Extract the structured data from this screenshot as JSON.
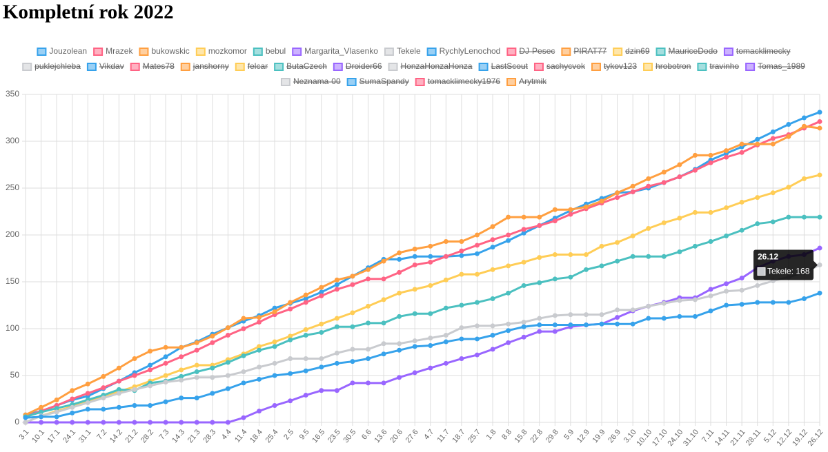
{
  "chart_data": {
    "type": "line",
    "title": "Kompletní rok 2022",
    "categories": [
      "3.1",
      "10.1",
      "17.1",
      "24.1",
      "31.1",
      "7.2",
      "14.2",
      "21.2",
      "28.2",
      "7.3",
      "14.3",
      "21.3",
      "28.3",
      "4.4",
      "11.4",
      "18.4",
      "25.4",
      "2.5",
      "9.5",
      "16.5",
      "23.5",
      "30.5",
      "6.6",
      "13.6",
      "20.6",
      "27.6",
      "4.7",
      "11.7",
      "18.7",
      "25.7",
      "1.8",
      "8.8",
      "15.8",
      "22.8",
      "29.8",
      "5.9",
      "12.9",
      "19.9",
      "26.9",
      "3.10",
      "10.10",
      "17.10",
      "24.10",
      "31.10",
      "7.11",
      "14.11",
      "21.11",
      "28.11",
      "5.12",
      "12.12",
      "19.12",
      "26.12"
    ],
    "ylim": [
      0,
      350
    ],
    "yticks": [
      0,
      50,
      100,
      150,
      200,
      250,
      300,
      350
    ],
    "grid": true,
    "series": [
      {
        "name": "Jouzolean",
        "color": "#36a2eb",
        "values": [
          8,
          12,
          18,
          24,
          28,
          36,
          44,
          53,
          61,
          70,
          80,
          86,
          94,
          101,
          108,
          114,
          122,
          127,
          132,
          139,
          147,
          156,
          165,
          174,
          174,
          177,
          177,
          177,
          178,
          180,
          187,
          194,
          202,
          210,
          218,
          226,
          233,
          239,
          245,
          246,
          250,
          256,
          262,
          270,
          280,
          287,
          294,
          302,
          310,
          318,
          325,
          331
        ]
      },
      {
        "name": "Mrazek",
        "color": "#ff6384",
        "values": [
          6,
          12,
          18,
          25,
          31,
          37,
          44,
          50,
          56,
          63,
          70,
          77,
          85,
          93,
          100,
          107,
          115,
          121,
          128,
          135,
          142,
          147,
          153,
          153,
          160,
          168,
          171,
          177,
          183,
          189,
          195,
          200,
          206,
          210,
          215,
          222,
          228,
          234,
          240,
          246,
          252,
          256,
          262,
          269,
          277,
          283,
          288,
          296,
          303,
          307,
          314,
          321
        ]
      },
      {
        "name": "bukowskic",
        "color": "#ff9f40",
        "values": [
          8,
          16,
          24,
          34,
          41,
          49,
          58,
          68,
          76,
          80,
          80,
          85,
          92,
          101,
          111,
          112,
          118,
          128,
          136,
          144,
          152,
          156,
          163,
          172,
          181,
          185,
          188,
          193,
          193,
          200,
          209,
          219,
          219,
          219,
          227,
          227,
          230,
          236,
          245,
          252,
          260,
          267,
          275,
          285,
          285,
          290,
          297,
          297,
          297,
          305,
          316,
          314
        ]
      },
      {
        "name": "mozkomor",
        "color": "#ffcd56",
        "values": [
          0,
          7,
          12,
          17,
          23,
          27,
          33,
          38,
          44,
          50,
          56,
          61,
          61,
          67,
          73,
          81,
          86,
          92,
          99,
          105,
          111,
          117,
          124,
          131,
          138,
          142,
          146,
          152,
          158,
          158,
          163,
          167,
          171,
          176,
          179,
          179,
          179,
          188,
          192,
          199,
          207,
          213,
          218,
          224,
          224,
          229,
          235,
          240,
          245,
          251,
          260,
          264
        ]
      },
      {
        "name": "bebul",
        "color": "#4bc0c0",
        "values": [
          6,
          11,
          15,
          19,
          24,
          29,
          35,
          34,
          42,
          44,
          49,
          54,
          58,
          64,
          71,
          77,
          81,
          88,
          93,
          96,
          102,
          102,
          106,
          106,
          113,
          116,
          116,
          122,
          125,
          128,
          132,
          138,
          146,
          149,
          153,
          155,
          163,
          167,
          172,
          177,
          177,
          177,
          182,
          188,
          193,
          199,
          205,
          212,
          214,
          219,
          219,
          219
        ]
      },
      {
        "name": "Margarita_Vlasenko",
        "color": "#9966ff",
        "values": [
          0,
          0,
          0,
          0,
          0,
          0,
          0,
          0,
          0,
          0,
          0,
          0,
          0,
          0,
          5,
          12,
          18,
          23,
          29,
          34,
          34,
          42,
          42,
          42,
          48,
          53,
          58,
          63,
          68,
          72,
          78,
          85,
          91,
          97,
          97,
          102,
          104,
          105,
          112,
          119,
          124,
          128,
          133,
          133,
          142,
          148,
          154,
          165,
          172,
          177,
          179,
          186
        ]
      },
      {
        "name": "Tekele",
        "color": "#c9cbcf",
        "values": [
          0,
          7,
          11,
          16,
          21,
          26,
          31,
          35,
          39,
          43,
          45,
          48,
          48,
          50,
          54,
          59,
          63,
          68,
          68,
          68,
          74,
          78,
          78,
          84,
          84,
          87,
          90,
          93,
          101,
          103,
          103,
          105,
          107,
          111,
          114,
          115,
          115,
          115,
          120,
          120,
          124,
          127,
          130,
          131,
          135,
          140,
          141,
          146,
          151,
          155,
          160,
          168
        ]
      },
      {
        "name": "RychlyLenochod",
        "color": "#36a2eb",
        "values": [
          5,
          6,
          6,
          10,
          14,
          14,
          16,
          18,
          18,
          22,
          26,
          26,
          31,
          36,
          42,
          46,
          50,
          52,
          55,
          59,
          63,
          65,
          68,
          73,
          77,
          81,
          82,
          86,
          89,
          89,
          93,
          98,
          102,
          104,
          104,
          104,
          104,
          105,
          105,
          105,
          111,
          111,
          113,
          113,
          119,
          125,
          126,
          128,
          128,
          128,
          132,
          138
        ]
      },
      {
        "name": "DJ-Pesec",
        "color": "#ff6384",
        "hidden": true
      },
      {
        "name": "PIRAT77",
        "color": "#ff9f40",
        "hidden": true
      },
      {
        "name": "dzin69",
        "color": "#ffcd56",
        "hidden": true
      },
      {
        "name": "MauriceDodo",
        "color": "#4bc0c0",
        "hidden": true
      },
      {
        "name": "tomacklimecky",
        "color": "#9966ff",
        "hidden": true
      },
      {
        "name": "puklejchleba",
        "color": "#c9cbcf",
        "hidden": true
      },
      {
        "name": "Vikdav",
        "color": "#36a2eb",
        "hidden": true
      },
      {
        "name": "Mates78",
        "color": "#ff6384",
        "hidden": true
      },
      {
        "name": "janshorny",
        "color": "#ff9f40",
        "hidden": true
      },
      {
        "name": "felcar",
        "color": "#ffcd56",
        "hidden": true
      },
      {
        "name": "ButaCzech",
        "color": "#4bc0c0",
        "hidden": true
      },
      {
        "name": "Droider66",
        "color": "#9966ff",
        "hidden": true
      },
      {
        "name": "HonzaHonzaHonza",
        "color": "#c9cbcf",
        "hidden": true
      },
      {
        "name": "LastScout",
        "color": "#36a2eb",
        "hidden": true
      },
      {
        "name": "sachycvok",
        "color": "#ff6384",
        "hidden": true
      },
      {
        "name": "tykov123",
        "color": "#ff9f40",
        "hidden": true
      },
      {
        "name": "hrobotron",
        "color": "#ffcd56",
        "hidden": true
      },
      {
        "name": "travinho",
        "color": "#4bc0c0",
        "hidden": true
      },
      {
        "name": "Tomas_1989",
        "color": "#9966ff",
        "hidden": true
      },
      {
        "name": "Neznama-00",
        "color": "#c9cbcf",
        "hidden": true
      },
      {
        "name": "SumaSpandy",
        "color": "#36a2eb",
        "hidden": true
      },
      {
        "name": "tomacklimecky1976",
        "color": "#ff6384",
        "hidden": true
      },
      {
        "name": "Arytmik",
        "color": "#ff9f40",
        "hidden": true
      }
    ],
    "tooltip": {
      "title": "26.12",
      "label": "Tekele: 168",
      "series": 6,
      "index": 51
    }
  }
}
